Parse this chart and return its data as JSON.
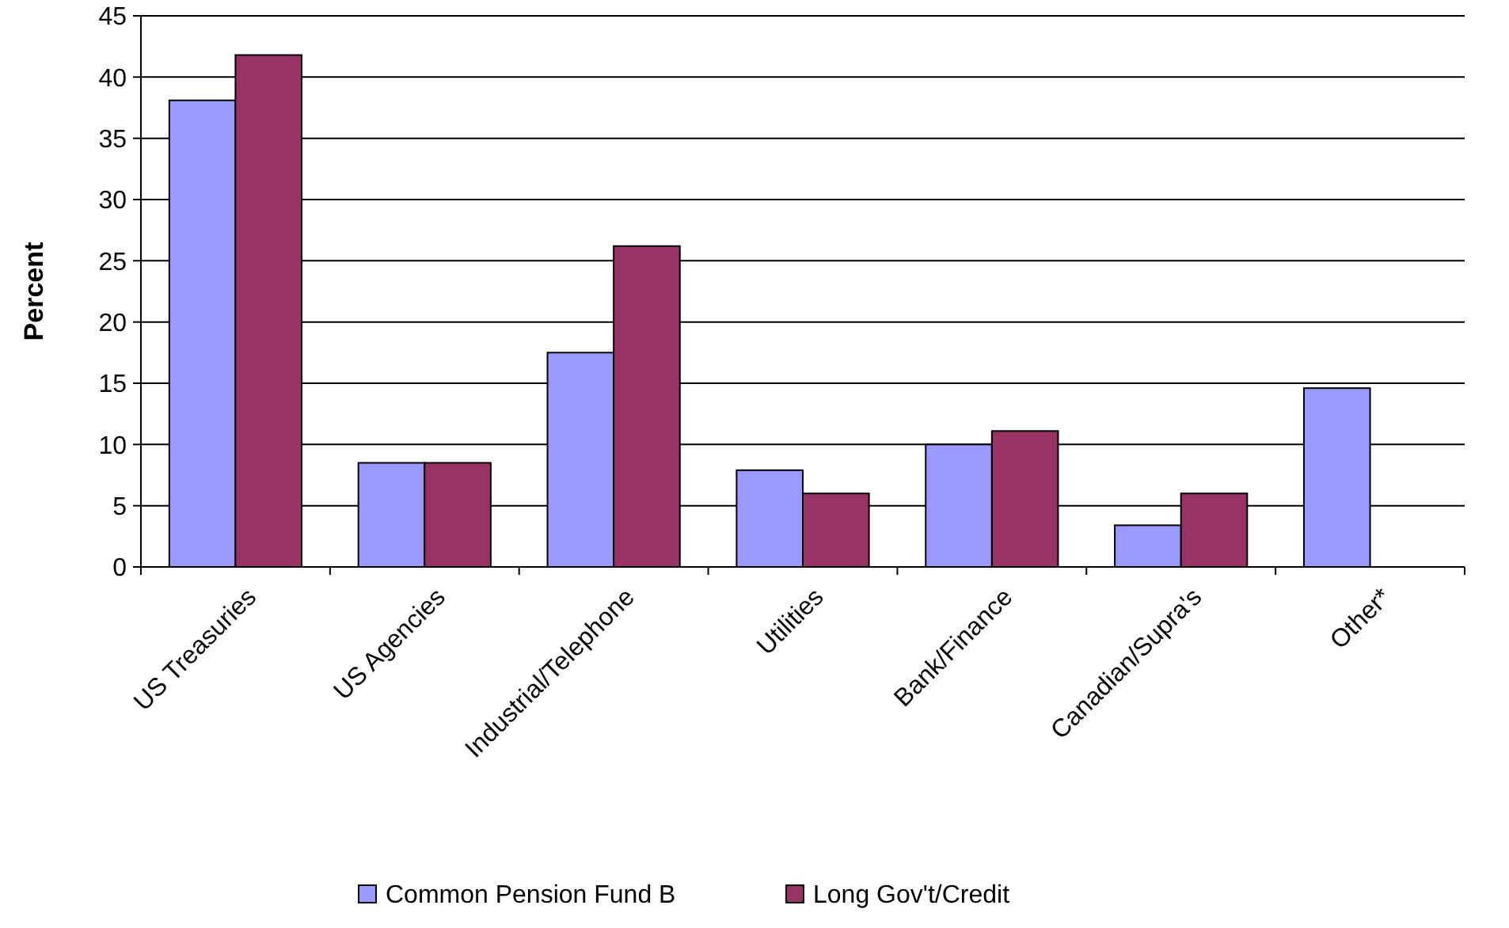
{
  "chart_data": {
    "type": "bar",
    "ylabel": "Percent",
    "categories": [
      "US Treasuries",
      "US Agencies",
      "Industrial/Telephone",
      "Utilities",
      "Bank/Finance",
      "Canadian/Supra's",
      "Other*"
    ],
    "series": [
      {
        "name": "Common Pension Fund B",
        "color": "#9999ff",
        "values": [
          38.1,
          8.5,
          17.5,
          7.9,
          10,
          3.4,
          14.6
        ]
      },
      {
        "name": "Long Gov't/Credit",
        "color": "#993366",
        "values": [
          41.8,
          8.5,
          26.2,
          6.0,
          11.1,
          6.0,
          null
        ]
      }
    ],
    "ylim": [
      0,
      45
    ],
    "yticks": [
      0,
      5,
      10,
      15,
      20,
      25,
      30,
      35,
      40,
      45
    ],
    "grid": "y",
    "legend": "bottom"
  }
}
